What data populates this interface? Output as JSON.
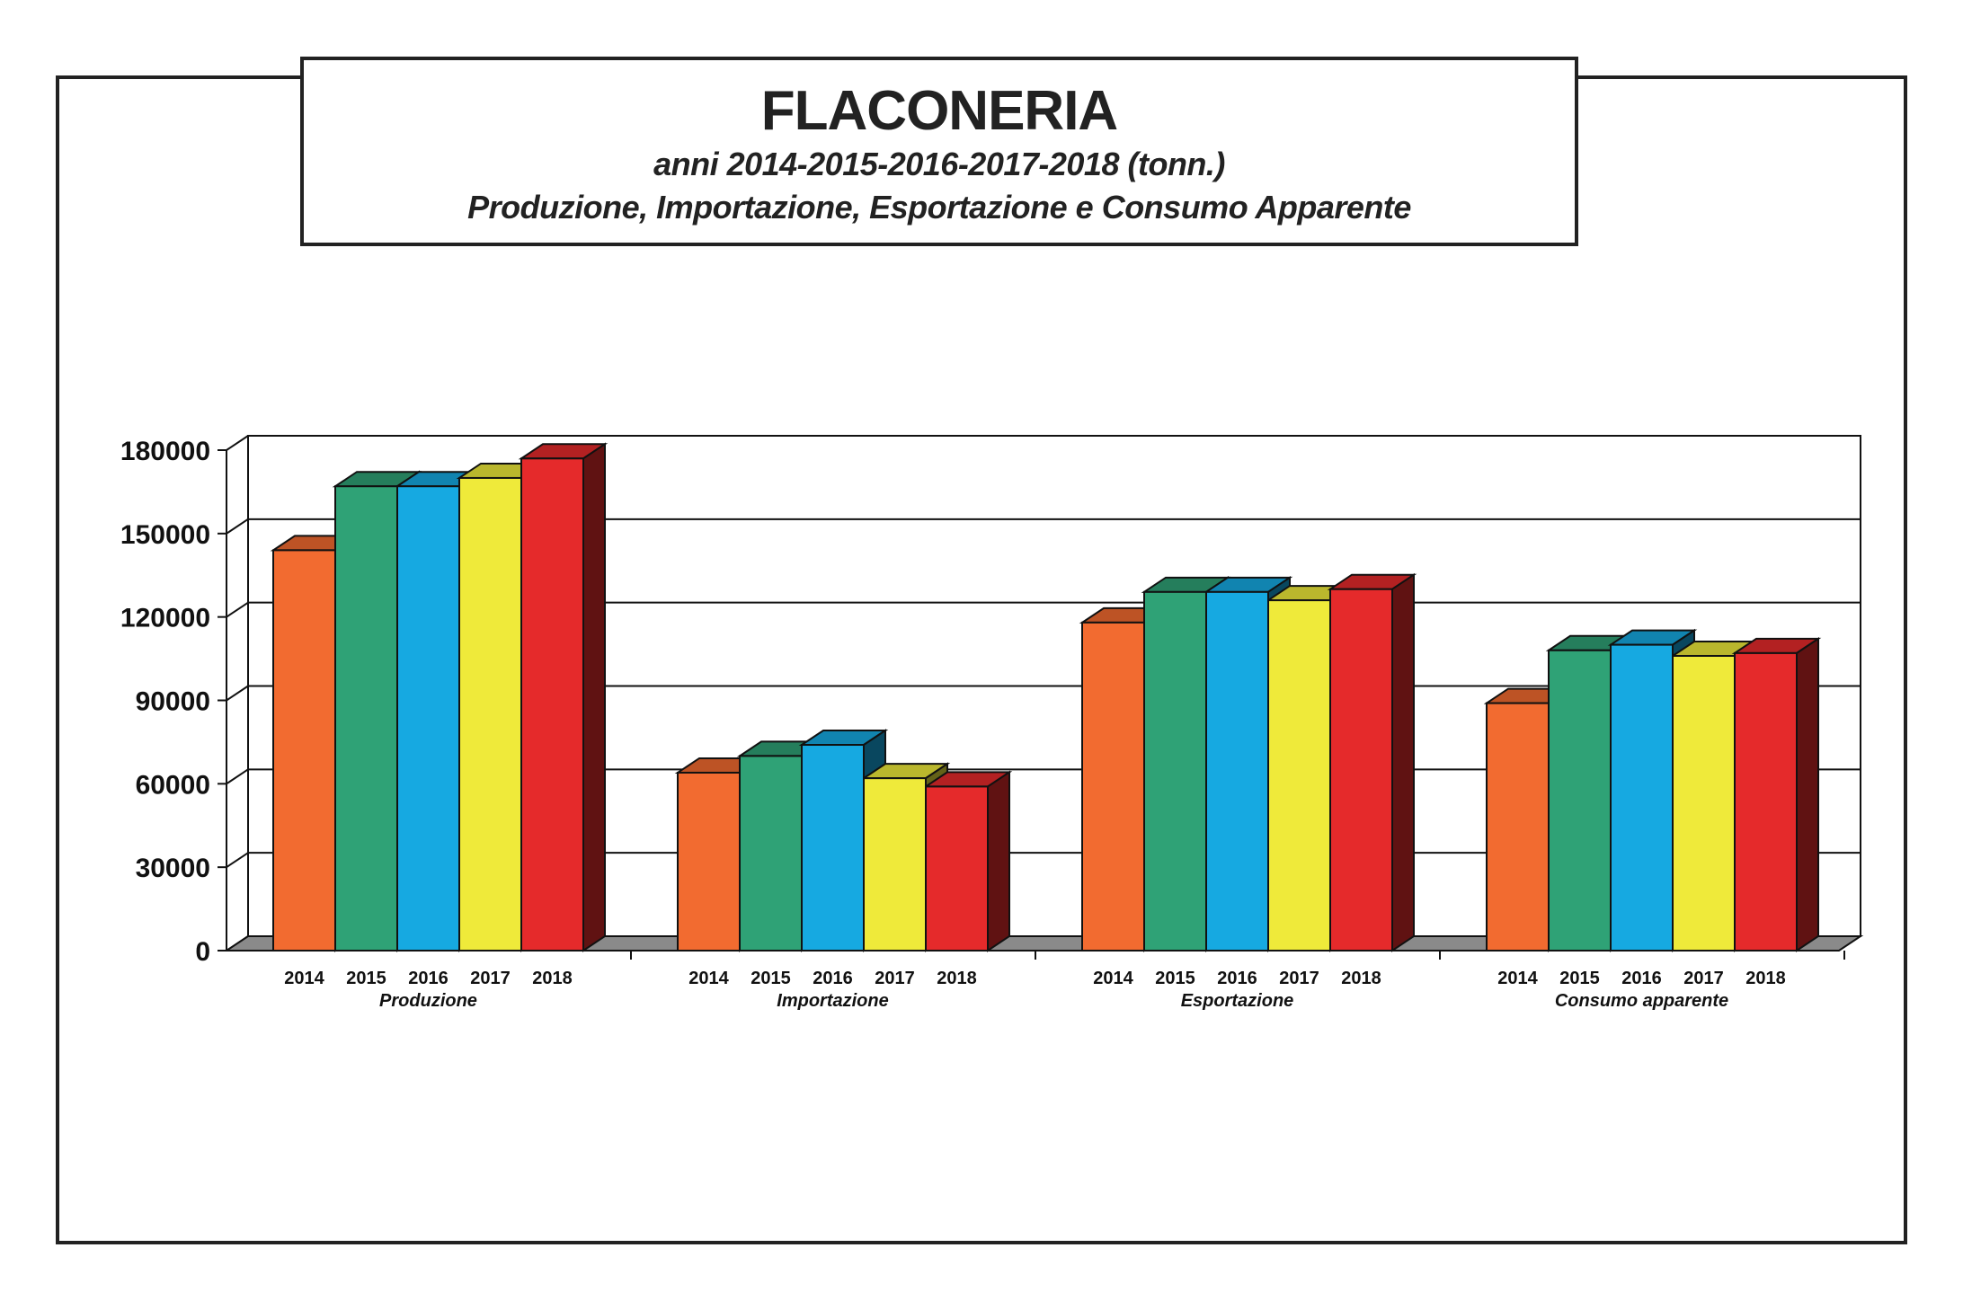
{
  "chart_data": {
    "type": "bar",
    "title": "FLACONERIA",
    "subtitle_line1": "anni 2014-2015-2016-2017-2018 (tonn.)",
    "subtitle_line2": "Produzione, Importazione, Esportazione e Consumo Apparente",
    "xlabel": "",
    "ylabel": "",
    "ylim": [
      0,
      180000
    ],
    "yticks": [
      "0",
      "30000",
      "60000",
      "90000",
      "120000",
      "150000",
      "180000"
    ],
    "grid": true,
    "legend": "none",
    "categories": [
      "Produzione",
      "Importazione",
      "Esportazione",
      "Consumo apparente"
    ],
    "series": [
      {
        "name": "2014",
        "color": "#F26B30",
        "values": [
          144000,
          64000,
          118000,
          89000
        ]
      },
      {
        "name": "2015",
        "color": "#2FA276",
        "values": [
          167000,
          70000,
          129000,
          108000
        ]
      },
      {
        "name": "2016",
        "color": "#16A9E1",
        "values": [
          167000,
          74000,
          129000,
          110000
        ]
      },
      {
        "name": "2017",
        "color": "#EFEA3A",
        "values": [
          170000,
          62000,
          126000,
          106000
        ]
      },
      {
        "name": "2018",
        "color": "#E52A2B",
        "values": [
          177000,
          59000,
          130000,
          107000
        ]
      }
    ]
  }
}
